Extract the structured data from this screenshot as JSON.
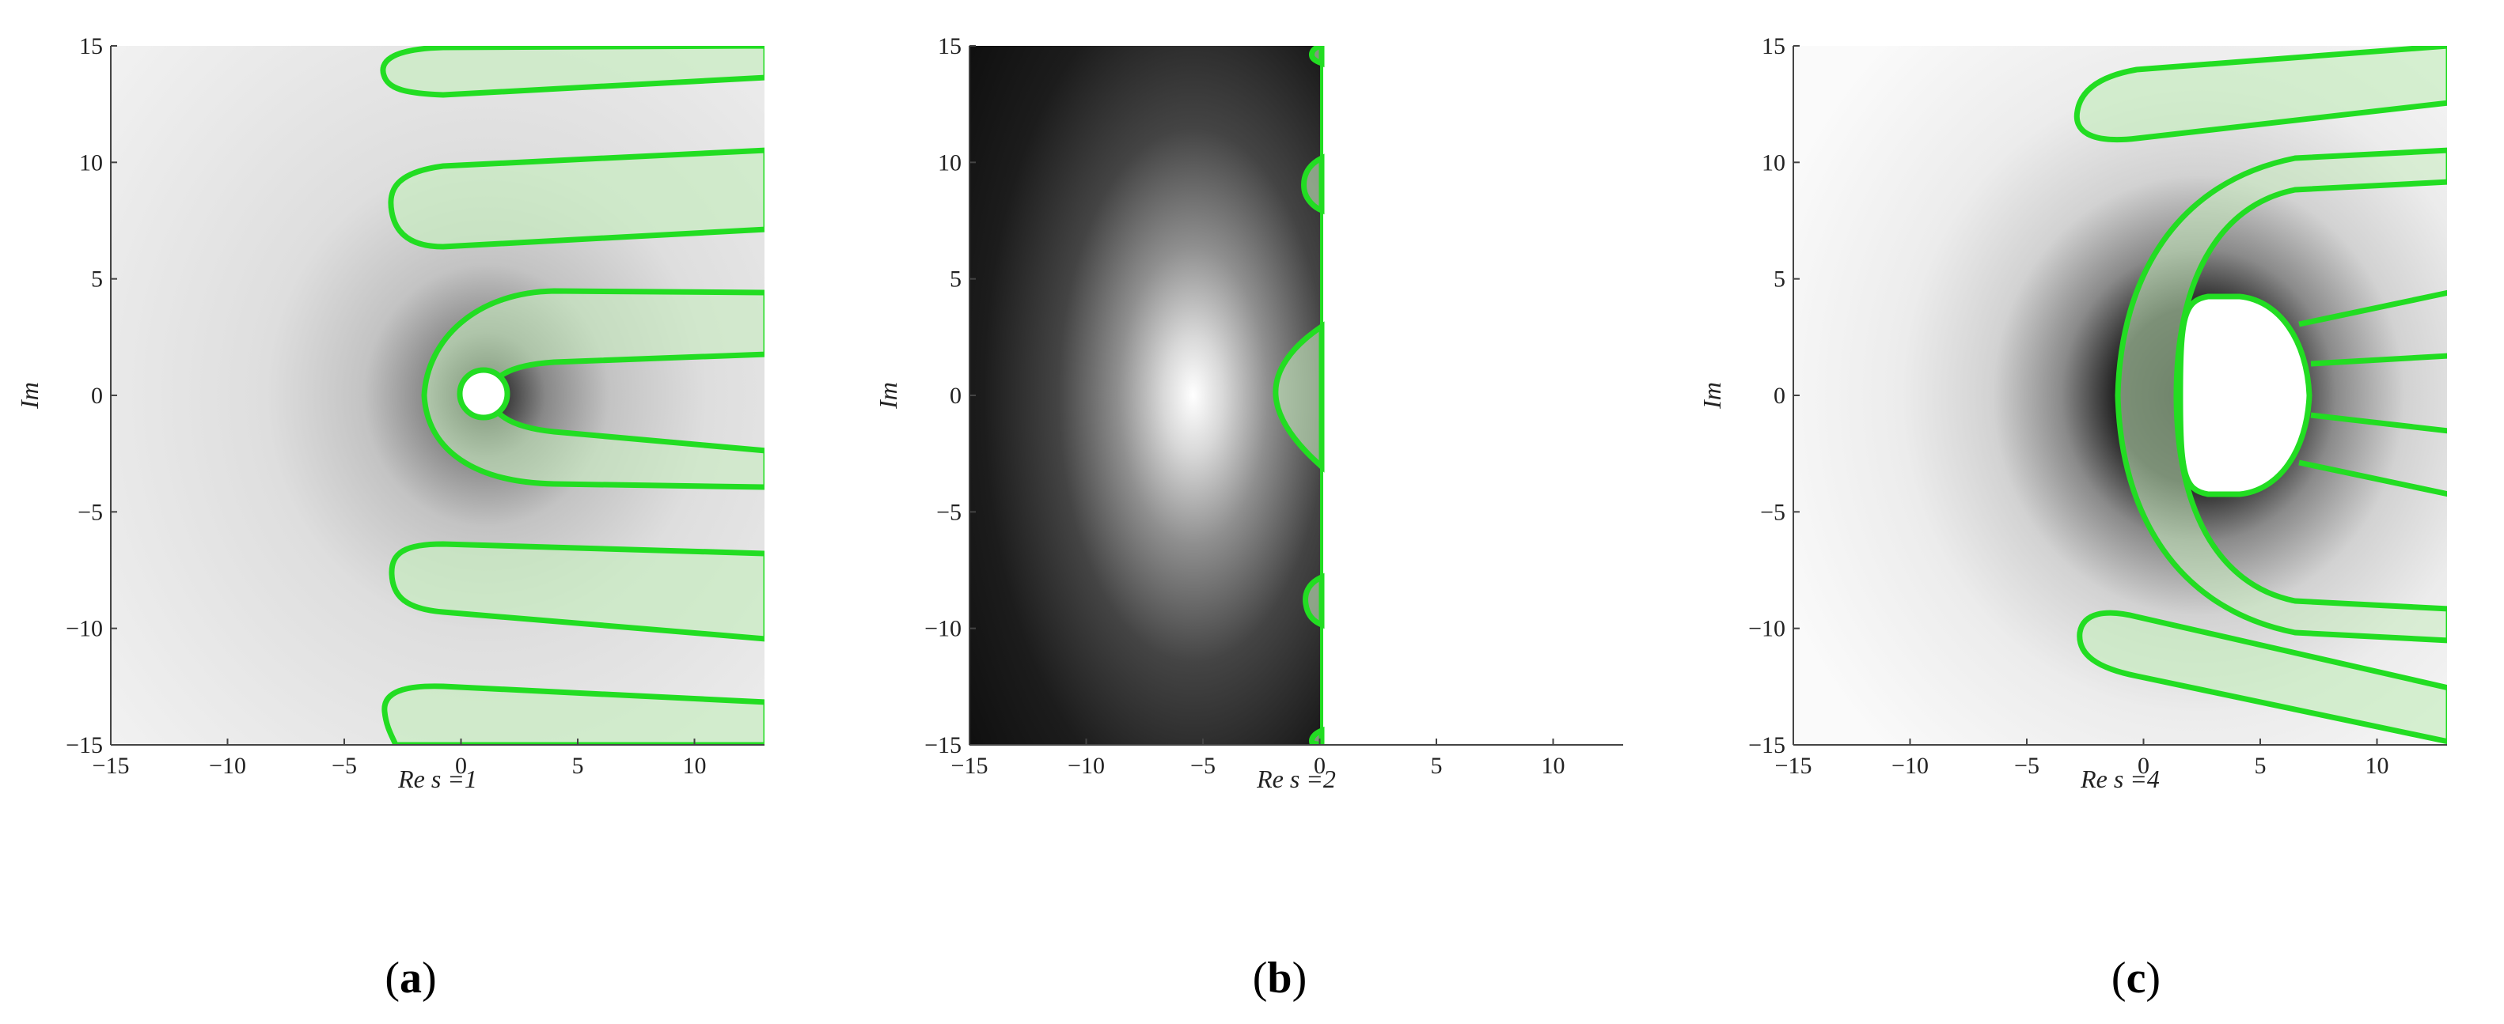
{
  "chart_data": [
    {
      "type": "contour",
      "panel_label": "(a)",
      "xlabel": "Re s =1",
      "ylabel": "Im",
      "xlim": [
        -15,
        13
      ],
      "ylim": [
        -15,
        15
      ],
      "xticks": [
        -15,
        -10,
        -5,
        0,
        5,
        10
      ],
      "yticks": [
        -15,
        -10,
        -5,
        0,
        5,
        10,
        15
      ],
      "background": "light-gray radial shading, darkening toward the white disc at (1, 0)",
      "hole_center": [
        1,
        0
      ],
      "hole_radius": 1,
      "regions_highlighted_green": 5,
      "contour_color": "#22dd22"
    },
    {
      "type": "contour",
      "panel_label": "(b)",
      "xlabel": "Re s =2",
      "ylabel": "Im",
      "xlim": [
        -15,
        13
      ],
      "ylim": [
        -15,
        15
      ],
      "xticks": [
        -15,
        -10,
        -5,
        0,
        5,
        10
      ],
      "yticks": [
        -15,
        -10,
        -5,
        0,
        5,
        10,
        15
      ],
      "background": "dark shading on Re s < 0 with a bright spot near the origin; empty for Re s > 0",
      "regions_highlighted_green": 5,
      "contour_color": "#22dd22"
    },
    {
      "type": "contour",
      "panel_label": "(c)",
      "xlabel": "Re s =4",
      "ylabel": "Im",
      "xlim": [
        -15,
        13
      ],
      "ylim": [
        -15,
        15
      ],
      "xticks": [
        -15,
        -10,
        -5,
        0,
        5,
        10
      ],
      "yticks": [
        -15,
        -10,
        -5,
        0,
        5,
        10,
        15
      ],
      "background": "light shading darkening around a white D-shaped region near (2.5, 0)",
      "regions_highlighted_green": 6,
      "contour_color": "#22dd22"
    }
  ],
  "colors": {
    "contour": "#22dd22",
    "fill": "#c8ecc0"
  }
}
